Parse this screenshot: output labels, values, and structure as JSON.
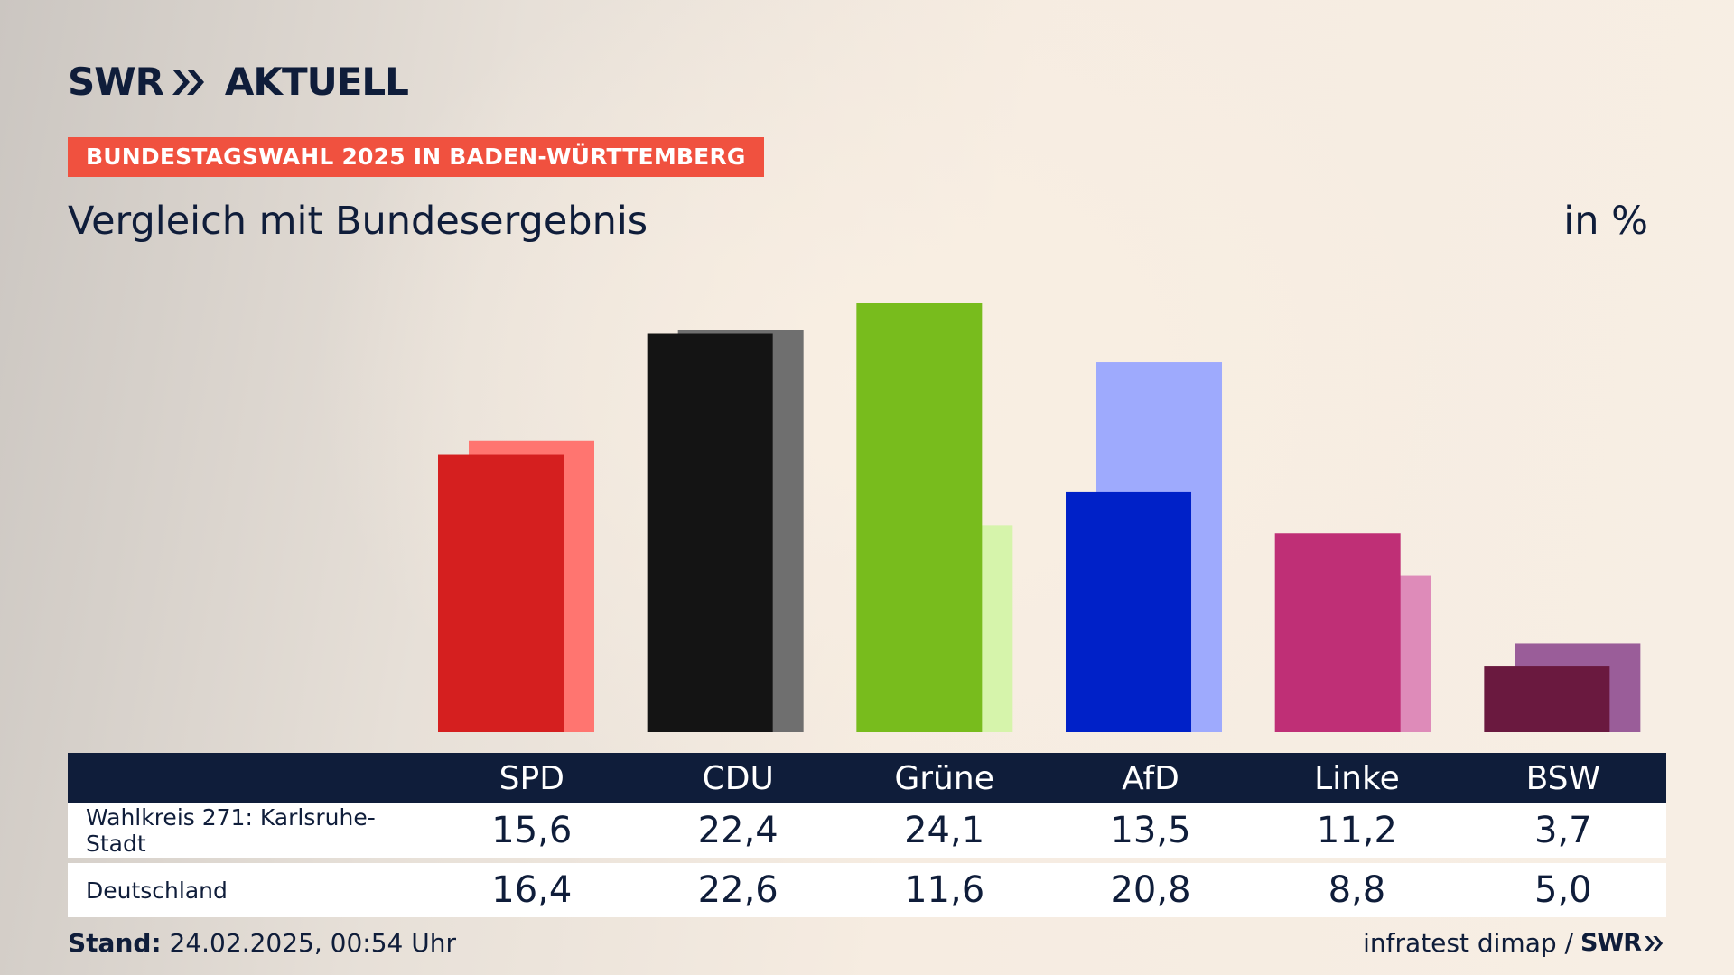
{
  "header": {
    "logo_text": "SWR",
    "logo_sub": "AKTUELL",
    "tag": "BUNDESTAGSWAHL 2025 IN BADEN-WÜRTTEMBERG",
    "title": "Vergleich mit Bundesergebnis",
    "unit": "in %"
  },
  "chart_data": {
    "type": "bar",
    "categories": [
      "SPD",
      "CDU",
      "Grüne",
      "AfD",
      "Linke",
      "BSW"
    ],
    "series": [
      {
        "name": "Wahlkreis 271: Karlsruhe-Stadt",
        "values": [
          15.6,
          22.4,
          24.1,
          13.5,
          11.2,
          3.7
        ]
      },
      {
        "name": "Deutschland",
        "values": [
          16.4,
          22.6,
          11.6,
          20.8,
          8.8,
          5.0
        ]
      }
    ],
    "colors_primary": [
      "#d51f1f",
      "#141414",
      "#78bc1d",
      "#0021c8",
      "#bf2f76",
      "#6a193f"
    ],
    "colors_secondary": [
      "#ff7570",
      "#6f6f6f",
      "#d6f4ab",
      "#9eaafd",
      "#de8bb9",
      "#9a5d99"
    ],
    "ylim": [
      0,
      24.1
    ],
    "grid": false,
    "title": "Vergleich mit Bundesergebnis"
  },
  "table": {
    "headers": [
      "SPD",
      "CDU",
      "Grüne",
      "AfD",
      "Linke",
      "BSW"
    ],
    "rows": [
      {
        "label": "Wahlkreis 271: Karlsruhe-Stadt",
        "values": [
          "15,6",
          "22,4",
          "24,1",
          "13,5",
          "11,2",
          "3,7"
        ]
      },
      {
        "label": "Deutschland",
        "values": [
          "16,4",
          "22,6",
          "11,6",
          "20,8",
          "8,8",
          "5,0"
        ]
      }
    ]
  },
  "footer": {
    "stand_label": "Stand:",
    "stand_value": "24.02.2025, 00:54 Uhr",
    "source": "infratest dimap /",
    "source_logo": "SWR"
  }
}
